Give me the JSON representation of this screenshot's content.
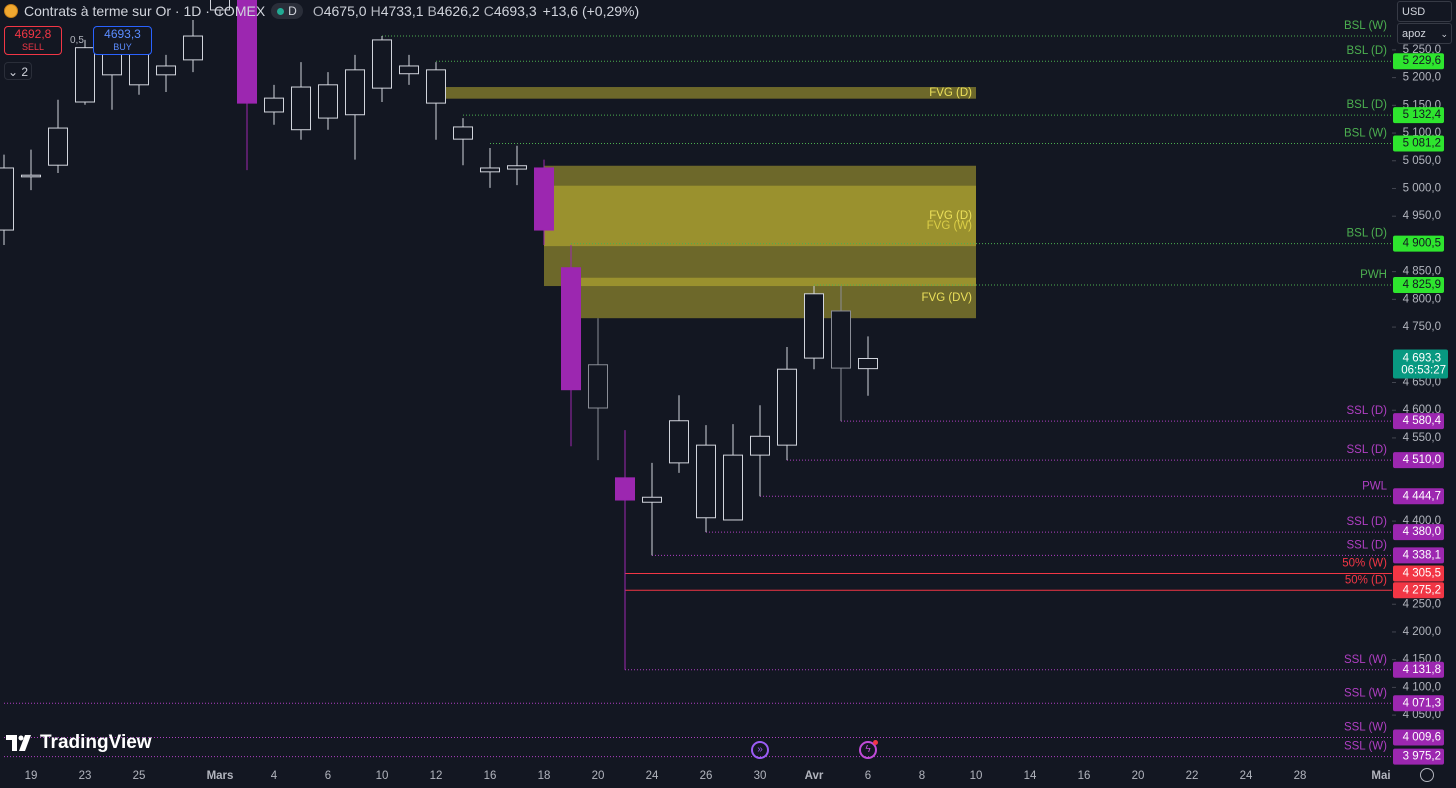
{
  "header": {
    "symbol": "Contrats à terme sur Or · 1D · COMEX",
    "session": "D",
    "ohlc": [
      {
        "key": "O",
        "value": "4675,0"
      },
      {
        "key": "H",
        "value": "4733,1"
      },
      {
        "key": "B",
        "value": "4626,2"
      },
      {
        "key": "C",
        "value": "4693,3"
      }
    ],
    "change": "+13,6 (+0,29%)"
  },
  "trade": {
    "sell_price": "4692,8",
    "sell": "SELL",
    "spread": "0,5",
    "buy_price": "4693,3",
    "buy": "BUY",
    "count": "2"
  },
  "toolbar": {
    "currency": "USD",
    "user": "apoz"
  },
  "brand": "TradingView",
  "chart_data": {
    "type": "candlestick",
    "categories": [
      null,
      "19",
      null,
      "23",
      null,
      "25",
      null,
      null,
      "Mars",
      null,
      "4",
      null,
      "6",
      null,
      "10",
      null,
      "12",
      null,
      "16",
      null,
      "18",
      null,
      "20",
      null,
      "24",
      null,
      "26",
      null,
      "30",
      null,
      "Avr",
      null,
      "6",
      null,
      "8",
      null,
      "10",
      null,
      "14",
      null,
      "16",
      null,
      "20",
      null,
      "22",
      null,
      "24",
      null,
      "28",
      null,
      null,
      "Mai"
    ],
    "open": [
      4925,
      5024,
      5042,
      5156,
      5250,
      5187,
      5205,
      5232,
      5322,
      5358,
      5138,
      5183,
      5127,
      5133,
      5181,
      5221,
      5214,
      5111,
      5037,
      5041,
      5037,
      4857,
      4682,
      4478,
      4434,
      4505,
      4537,
      4402,
      4519,
      4537,
      4694,
      4779,
      4675,
      null,
      null,
      null,
      null,
      null,
      null,
      null,
      null,
      null,
      null,
      null,
      null,
      null,
      null,
      null,
      null,
      null,
      null,
      null
    ],
    "high": [
      5061,
      5070,
      5160,
      5268,
      5268,
      5268,
      5241,
      5304,
      5376,
      5376,
      5187,
      5228,
      5210,
      5241,
      5275,
      5241,
      5228,
      5127,
      5073,
      5077,
      5052,
      4898,
      4766,
      4564,
      4505,
      4627,
      4573,
      4575,
      4609,
      4714,
      4824,
      4824,
      4733.1,
      null,
      null,
      null,
      null,
      null,
      null,
      null,
      null,
      null,
      null,
      null,
      null,
      null,
      null,
      null,
      null,
      null,
      null,
      null
    ],
    "low": [
      4898,
      4997,
      5028,
      5151,
      5142,
      5169,
      5174,
      5210,
      5313,
      5033,
      5115,
      5088,
      5106,
      5052,
      5156,
      5187,
      5088,
      5042,
      5001,
      5006,
      4898,
      4535,
      4510,
      4131.8,
      4338.1,
      4487,
      4380,
      4402,
      4444.7,
      4510,
      4674,
      4580.4,
      4626.2,
      null,
      null,
      null,
      null,
      null,
      null,
      null,
      null,
      null,
      null,
      null,
      null,
      null,
      null,
      null,
      null,
      null,
      null,
      null
    ],
    "close": [
      5037,
      5021,
      5109,
      5254,
      5205,
      5246,
      5221,
      5275,
      5358,
      5154,
      5163,
      5106,
      5187,
      5214,
      5268,
      5207,
      5154,
      5089,
      5030,
      5035,
      4925,
      4637,
      4604,
      4438,
      4443,
      4581,
      4406,
      4519,
      4553,
      4674,
      4810,
      4676,
      4693.3,
      null,
      null,
      null,
      null,
      null,
      null,
      null,
      null,
      null,
      null,
      null,
      null,
      null,
      null,
      null,
      null,
      null,
      null,
      null
    ],
    "colors": [
      "#d1d4dc",
      "#d1d4dc",
      "#d1d4dc",
      "#d1d4dc",
      "#d1d4dc",
      "#d1d4dc",
      "#d1d4dc",
      "#d1d4dc",
      "#d1d4dc",
      "#9c27b0",
      "#d1d4dc",
      "#d1d4dc",
      "#d1d4dc",
      "#d1d4dc",
      "#d1d4dc",
      "#d1d4dc",
      "#d1d4dc",
      "#d1d4dc",
      "#d1d4dc",
      "#d1d4dc",
      "#9c27b0",
      "#9c27b0",
      "#8a8d96",
      "#9c27b0",
      "#d1d4dc",
      "#d1d4dc",
      "#d1d4dc",
      "#d1d4dc",
      "#d1d4dc",
      "#d1d4dc",
      "#d1d4dc",
      "#8a8d96",
      "#d1d4dc",
      null,
      null,
      null,
      null,
      null,
      null,
      null,
      null,
      null,
      null,
      null,
      null,
      null,
      null,
      null,
      null,
      null,
      null,
      null
    ],
    "ylim": [
      3960,
      5340
    ],
    "yticks": [
      {
        "value": 5250,
        "label": "5 250,0"
      },
      {
        "value": 5200,
        "label": "5 200,0"
      },
      {
        "value": 5150,
        "label": "5 150,0"
      },
      {
        "value": 5100,
        "label": "5 100,0"
      },
      {
        "value": 5050,
        "label": "5 050,0"
      },
      {
        "value": 5000,
        "label": "5 000,0"
      },
      {
        "value": 4950,
        "label": "4 950,0"
      },
      {
        "value": 4850,
        "label": "4 850,0"
      },
      {
        "value": 4800,
        "label": "4 800,0"
      },
      {
        "value": 4750,
        "label": "4 750,0"
      },
      {
        "value": 4650,
        "label": "4 650,0"
      },
      {
        "value": 4600,
        "label": "4 600,0"
      },
      {
        "value": 4550,
        "label": "4 550,0"
      },
      {
        "value": 4400,
        "label": "4 400,0"
      },
      {
        "value": 4250,
        "label": "4 250,0"
      },
      {
        "value": 4200,
        "label": "4 200,0"
      },
      {
        "value": 4150,
        "label": "4 150,0"
      },
      {
        "value": 4100,
        "label": "4 100,0"
      },
      {
        "value": 4050,
        "label": "4 050,0"
      }
    ],
    "zone_color": "rgba(200,186,50,0.5)",
    "zones": [
      {
        "label": "FVG (D)",
        "top": 5183,
        "bottom": 5162,
        "start": 16,
        "end": 36
      },
      {
        "label": "FVG (W)",
        "top": 5041,
        "bottom": 4824,
        "start": 20,
        "end": 36
      },
      {
        "label": "FVG (D)",
        "top": 5005,
        "bottom": 4896,
        "start": 20,
        "end": 36
      },
      {
        "label": "FVG (DV)",
        "top": 4839,
        "bottom": 4766,
        "start": 21,
        "end": 36
      }
    ],
    "levels": [
      {
        "label": "BSL (W)",
        "value": 5275,
        "start": 14,
        "color": "#4caf50",
        "dashed": true
      },
      {
        "label": "BSL (D)",
        "value": 5229.6,
        "value_label": "5 229,6",
        "start": 16,
        "color": "#4caf50",
        "box_color": "#2ee52e",
        "box_text_color": "#131722",
        "dashed": true
      },
      {
        "label": "BSL (D)",
        "value": 5132.4,
        "value_label": "5 132,4",
        "start": 17,
        "color": "#4caf50",
        "box_color": "#2ee52e",
        "box_text_color": "#131722",
        "dashed": true
      },
      {
        "label": "BSL (W)",
        "value": 5081.2,
        "value_label": "5 081,2",
        "start": 18,
        "color": "#4caf50",
        "box_color": "#2ee52e",
        "box_text_color": "#131722",
        "dashed": true
      },
      {
        "label": "BSL (D)",
        "value": 4900.5,
        "value_label": "4 900,5",
        "start": 21,
        "color": "#4caf50",
        "box_color": "#2ee52e",
        "box_text_color": "#131722",
        "dashed": true
      },
      {
        "label": "PWH",
        "value": 4825.9,
        "value_label": "4 825,9",
        "start": 30,
        "color": "#4caf50",
        "box_color": "#2ee52e",
        "box_text_color": "#131722",
        "dashed": true
      },
      {
        "label": "SSL (D)",
        "value": 4580.4,
        "value_label": "4 580,4",
        "start": 31,
        "color": "#b03fc3",
        "box_color": "#9c27b0",
        "box_text_color": "#ffffff",
        "dashed": true
      },
      {
        "label": "SSL (D)",
        "value": 4510,
        "value_label": "4 510,0",
        "start": 29,
        "color": "#b03fc3",
        "box_color": "#9c27b0",
        "box_text_color": "#ffffff",
        "dashed": true
      },
      {
        "label": "PWL",
        "value": 4444.7,
        "value_label": "4 444,7",
        "start": 28,
        "color": "#b03fc3",
        "box_color": "#9c27b0",
        "box_text_color": "#ffffff",
        "dashed": true
      },
      {
        "label": "SSL (D)",
        "value": 4380,
        "value_label": "4 380,0",
        "start": 26,
        "color": "#b03fc3",
        "box_color": "#9c27b0",
        "box_text_color": "#ffffff",
        "dashed": true
      },
      {
        "label": "SSL (D)",
        "value": 4338.1,
        "value_label": "4 338,1",
        "start": 24,
        "color": "#b03fc3",
        "box_color": "#9c27b0",
        "box_text_color": "#ffffff",
        "dashed": true
      },
      {
        "label": "50% (W)",
        "value": 4305.5,
        "value_label": "4 305,5",
        "start": 23,
        "color": "#f23645",
        "box_color": "#f23645",
        "box_text_color": "#ffffff",
        "dashed": false
      },
      {
        "label": "50% (D)",
        "value": 4275.2,
        "value_label": "4 275,2",
        "start": 23,
        "color": "#f23645",
        "box_color": "#f23645",
        "box_text_color": "#ffffff",
        "dashed": false
      },
      {
        "label": "SSL (W)",
        "value": 4131.8,
        "value_label": "4 131,8",
        "start": 23,
        "color": "#b03fc3",
        "box_color": "#9c27b0",
        "box_text_color": "#ffffff",
        "dashed": true
      },
      {
        "label": "SSL (W)",
        "value": 4071.3,
        "value_label": "4 071,3",
        "start": 0,
        "color": "#b03fc3",
        "box_color": "#9c27b0",
        "box_text_color": "#ffffff",
        "dashed": true
      },
      {
        "label": "SSL (W)",
        "value": 4009.6,
        "value_label": "4 009,6",
        "start": 0,
        "color": "#b03fc3",
        "box_color": "#9c27b0",
        "box_text_color": "#ffffff",
        "dashed": true
      },
      {
        "label": "SSL (W)",
        "value": 3975.2,
        "value_label": "3 975,2",
        "start": 0,
        "color": "#b03fc3",
        "box_color": "#9c27b0",
        "box_text_color": "#ffffff",
        "dashed": true
      }
    ],
    "last_price": {
      "value": 4693.3,
      "label": "4 693,3",
      "timer": "06:53:27",
      "color": "#089981"
    }
  }
}
